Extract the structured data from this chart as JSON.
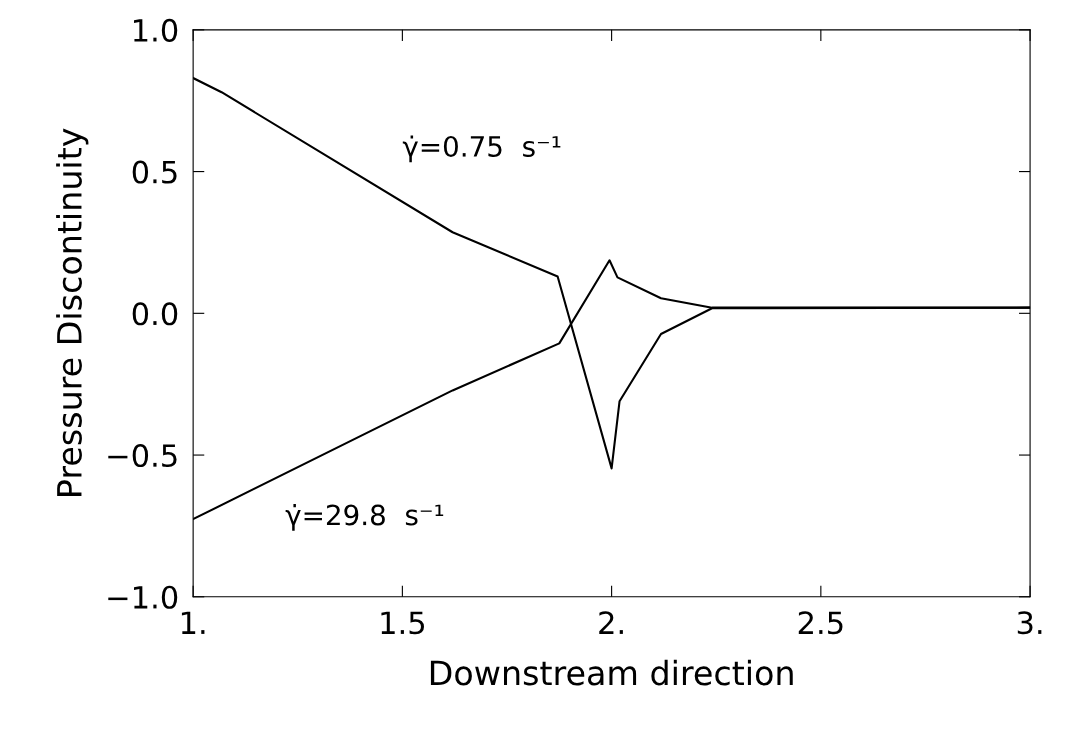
{
  "chart_data": {
    "type": "line",
    "xlabel": "Downstream direction",
    "ylabel": "Pressure Discontinuity",
    "series": [
      {
        "color": "#000000",
        "x": [
          1.0,
          1.068,
          1.62,
          1.871,
          2.0,
          2.019,
          2.118,
          2.24,
          3.0
        ],
        "values": [
          0.83,
          0.78,
          0.286,
          0.13,
          -0.547,
          -0.31,
          -0.073,
          0.018,
          0.02
        ]
      },
      {
        "color": "#000000",
        "x": [
          1.0,
          1.62,
          1.875,
          1.995,
          2.014,
          2.118,
          2.24,
          3.0
        ],
        "values": [
          -0.726,
          -0.272,
          -0.106,
          0.187,
          0.127,
          0.053,
          0.02,
          0.02
        ]
      }
    ],
    "xlim": [
      1,
      3
    ],
    "ylim": [
      -1,
      1
    ],
    "xticks": [
      {
        "value": 1,
        "label": "1."
      },
      1.5,
      {
        "value": 2,
        "label": "2."
      },
      2.5,
      {
        "value": 3,
        "label": "3."
      }
    ],
    "yticks": [
      {
        "value": -1,
        "label": "−1.0"
      },
      {
        "value": -0.5,
        "label": "−0.5"
      },
      {
        "value": 0,
        "label": "0.0"
      },
      {
        "value": 0.5,
        "label": "0.5"
      },
      {
        "value": 1,
        "label": "1.0"
      }
    ],
    "grid": false,
    "marker": "none",
    "line_style": "solid",
    "annotations": [
      "γ̇=0.75  s⁻¹",
      "γ̇=29.8  s⁻¹"
    ]
  }
}
